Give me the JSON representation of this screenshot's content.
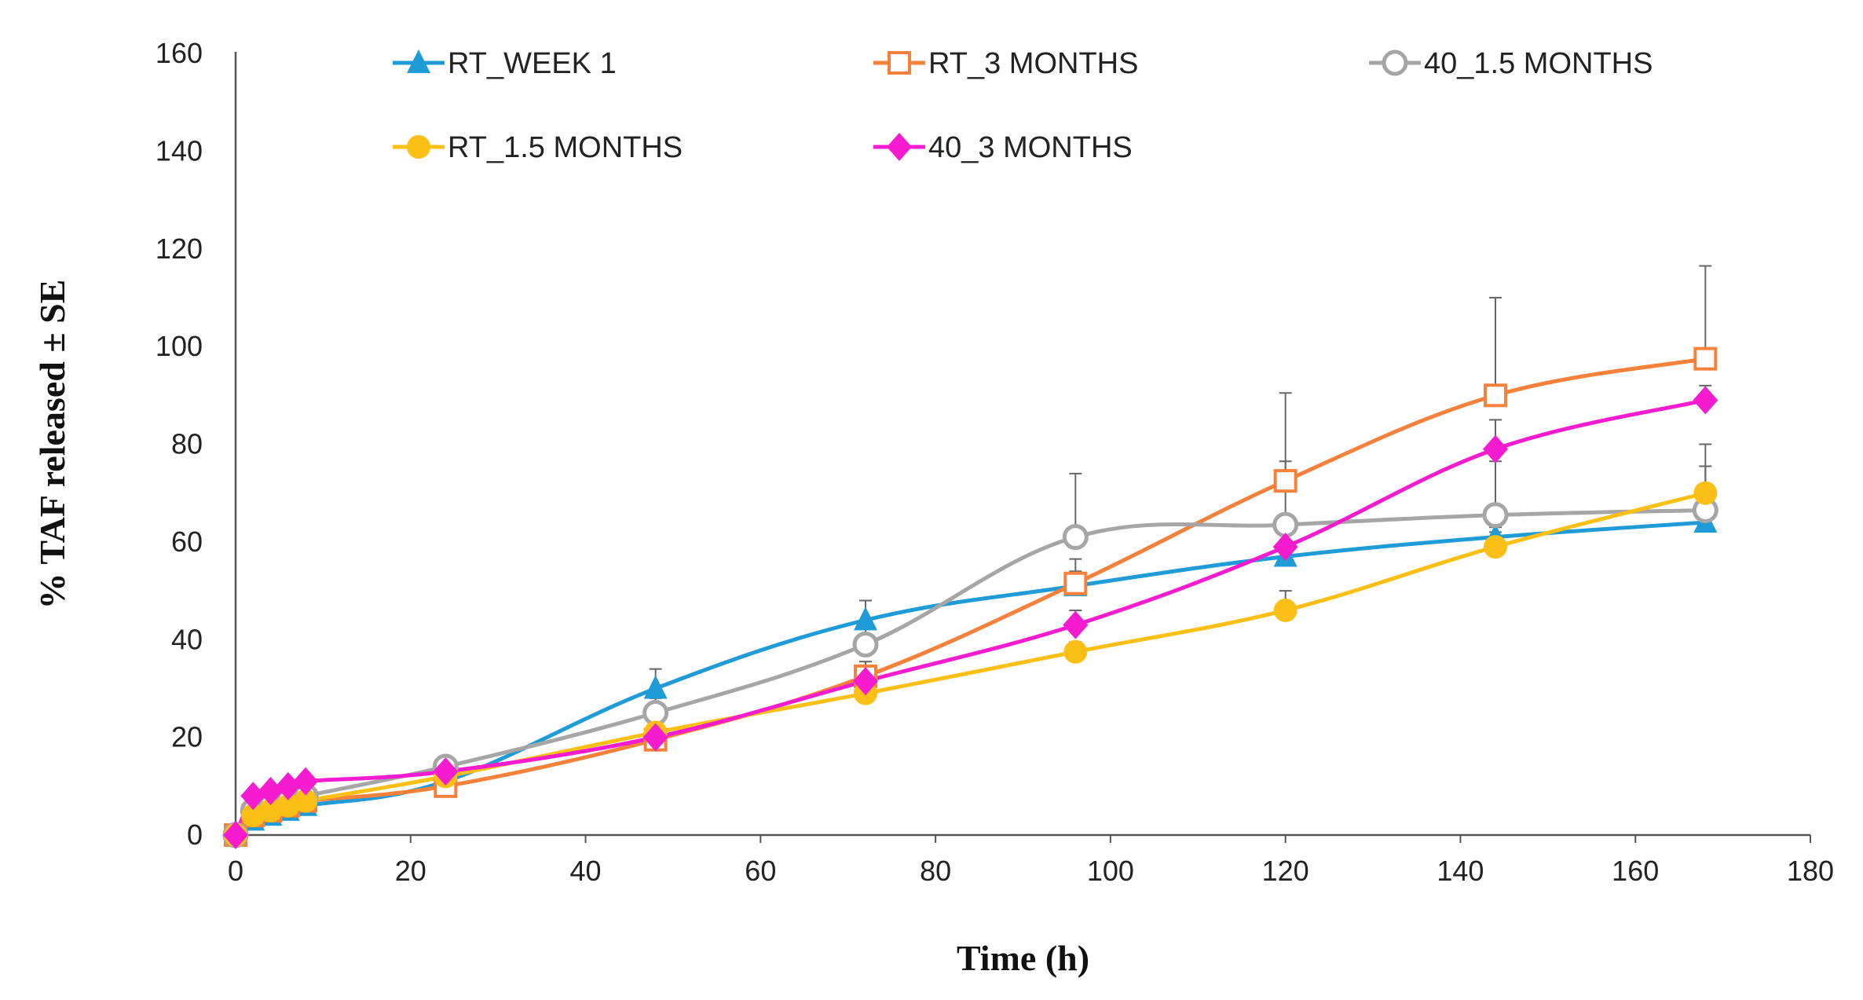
{
  "chart_data": {
    "type": "line",
    "title": "",
    "xlabel": "Time (h)",
    "ylabel": "% TAF released ± SE",
    "xlim": [
      0,
      180
    ],
    "ylim": [
      0,
      160
    ],
    "xticks": [
      0,
      20,
      40,
      60,
      80,
      100,
      120,
      140,
      160,
      180
    ],
    "yticks": [
      0,
      20,
      40,
      60,
      80,
      100,
      120,
      140,
      160
    ],
    "grid": false,
    "legend_position": "top",
    "x": [
      0,
      2,
      4,
      6,
      8,
      24,
      48,
      72,
      96,
      120,
      144,
      168
    ],
    "series": [
      {
        "name": "RT_WEEK 1",
        "color": "#1f9bd7",
        "marker": "triangle",
        "values": [
          0,
          3,
          4,
          5,
          6,
          11,
          30,
          44,
          51,
          57,
          61,
          64
        ],
        "errors": [
          0,
          0,
          0,
          0,
          0,
          1,
          4,
          4,
          3,
          2,
          2,
          2
        ]
      },
      {
        "name": "RT_3 MONTHS",
        "color": "#f5813b",
        "marker": "square-open",
        "values": [
          0,
          4,
          5,
          6,
          7,
          10,
          19.5,
          32.5,
          51.5,
          72.5,
          90,
          97.5
        ],
        "errors": [
          0,
          0,
          0,
          0,
          0,
          1,
          2,
          3,
          5,
          18,
          20,
          19
        ]
      },
      {
        "name": "40_1.5 MONTHS",
        "color": "#a6a6a6",
        "marker": "circle-open",
        "values": [
          0,
          5,
          6,
          7,
          8,
          14,
          25,
          39,
          61,
          63.5,
          65.5,
          66.5
        ],
        "errors": [
          0,
          0,
          0,
          0,
          0,
          1,
          3,
          5,
          13,
          13,
          11,
          9
        ]
      },
      {
        "name": "RT_1.5 MONTHS",
        "color": "#fbbf16",
        "marker": "circle",
        "values": [
          0,
          4,
          5,
          6,
          7,
          12,
          21,
          29,
          37.5,
          46,
          59,
          70
        ],
        "errors": [
          0,
          0,
          0,
          0,
          0,
          1,
          2,
          2,
          2,
          4,
          3,
          10
        ]
      },
      {
        "name": "40_3 MONTHS",
        "color": "#f51cd0",
        "marker": "diamond",
        "values": [
          0,
          8,
          9,
          10,
          11,
          13,
          20,
          31.5,
          43,
          59,
          79,
          89
        ],
        "errors": [
          0,
          0,
          0,
          0,
          0,
          1,
          2,
          3,
          3,
          3,
          6,
          3
        ]
      }
    ]
  }
}
